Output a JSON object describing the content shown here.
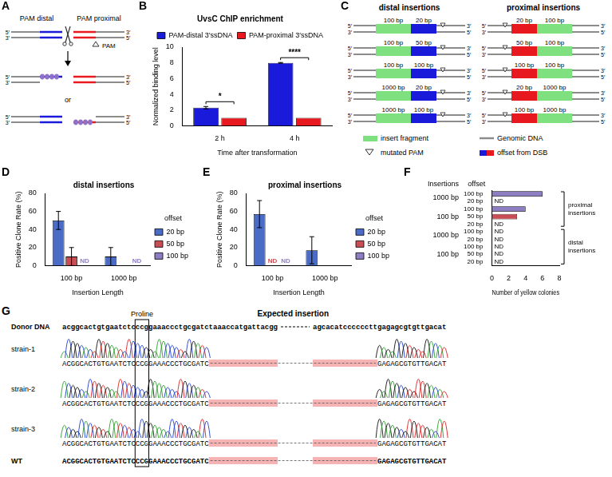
{
  "chart_data": [
    {
      "panel": "B",
      "type": "bar",
      "title": "UvsC ChIP enrichment",
      "x_label": "Time after transformation",
      "y_label": "Normalized binding level",
      "categories": [
        "2 h",
        "4 h"
      ],
      "series": [
        {
          "name": "PAM-distal 3′ssDNA",
          "color": "#1a1adb",
          "values": [
            2.3,
            8.0
          ],
          "errors": [
            0.15,
            0.05
          ]
        },
        {
          "name": "PAM-proximal 3′ssDNA",
          "color": "#e8191e",
          "values": [
            1,
            1
          ]
        }
      ],
      "significance": [
        "*",
        "****"
      ],
      "ylim": [
        0,
        10
      ],
      "yticks": [
        0,
        2,
        4,
        6,
        8,
        10
      ],
      "grid": false,
      "legend": "top"
    },
    {
      "panel": "D",
      "type": "bar",
      "title": "distal insertions",
      "x_label": "Insertion Length",
      "y_label": "Positive Clone Rate (%)",
      "legend_title": "offset",
      "categories": [
        "100 bp",
        "1000 bp"
      ],
      "series": [
        {
          "name": "20 bp",
          "color": "#4a6cc7",
          "values": [
            50,
            10
          ],
          "errors": [
            10,
            10
          ]
        },
        {
          "name": "50 bp",
          "color": "#c94d55",
          "values": [
            10,
            null
          ],
          "errors": [
            10,
            null
          ]
        },
        {
          "name": "100 bp",
          "color": "#8d7dc2",
          "values": [
            null,
            null
          ],
          "not_detected": [
            true,
            true
          ]
        }
      ],
      "not_detected_label": "ND",
      "ylim": [
        0,
        80
      ],
      "yticks": [
        0,
        20,
        40,
        60,
        80
      ],
      "grid": false,
      "legend": "right"
    },
    {
      "panel": "E",
      "type": "bar",
      "title": "proximal insertions",
      "x_label": "Insertion Length",
      "y_label": "Positive Clone Rate (%)",
      "legend_title": "offset",
      "categories": [
        "100 bp",
        "1000 bp"
      ],
      "series": [
        {
          "name": "20 bp",
          "color": "#4a6cc7",
          "values": [
            57,
            17
          ],
          "errors": [
            15,
            15
          ]
        },
        {
          "name": "50 bp",
          "color": "#c94d55",
          "values": [
            null,
            null
          ],
          "not_detected": [
            true,
            false
          ]
        },
        {
          "name": "100 bp",
          "color": "#8d7dc2",
          "values": [
            null,
            null
          ],
          "not_detected": [
            true,
            false
          ]
        }
      ],
      "not_detected_label": "ND",
      "ylim": [
        0,
        80
      ],
      "yticks": [
        0,
        20,
        40,
        60,
        80
      ],
      "grid": false,
      "legend": "right"
    },
    {
      "panel": "F",
      "type": "bar",
      "orientation": "horizontal",
      "x_label": "Number of yellow colonies",
      "insertions_header": "Insertions",
      "offset_header": "offset",
      "categories": [
        "100 bp",
        "20 bp",
        "100 bp",
        "50 bp",
        "20 bp",
        "100 bp",
        "20 bp",
        "100 bp",
        "50 bp",
        "20 bp"
      ],
      "insertions": [
        "1000 bp",
        "1000 bp",
        "100 bp",
        "100 bp",
        "100 bp",
        "1000 bp",
        "1000 bp",
        "100 bp",
        "100 bp",
        "100 bp"
      ],
      "sections": [
        "proximal insertions",
        "proximal insertions",
        "proximal insertions",
        "proximal insertions",
        "proximal insertions",
        "distal insertions",
        "distal insertions",
        "distal insertions",
        "distal insertions",
        "distal insertions"
      ],
      "values": [
        6,
        null,
        4,
        3,
        null,
        null,
        null,
        null,
        null,
        null
      ],
      "not_detected": [
        false,
        true,
        false,
        false,
        true,
        true,
        true,
        true,
        true,
        true
      ],
      "not_detected_label": "ND",
      "colors": [
        "#8d7dc2",
        "#4a6cc7",
        "#8d7dc2",
        "#c94d55",
        "#4a6cc7",
        "#8d7dc2",
        "#4a6cc7",
        "#8d7dc2",
        "#c94d55",
        "#4a6cc7"
      ],
      "xlim": [
        0,
        8
      ],
      "xticks": [
        0,
        2,
        4,
        6,
        8
      ],
      "grid": false
    }
  ],
  "diagrams": {
    "A": {
      "panel": "A",
      "distal_label": "PAM distal",
      "proximal_label": "PAM proximal",
      "pam_label": "PAM",
      "or_label": "or",
      "five_prime": "5′",
      "three_prime": "3′"
    },
    "C": {
      "panel": "C",
      "distal": {
        "title": "distal insertions",
        "rows": [
          {
            "insert": "100 bp",
            "offset": "20 bp"
          },
          {
            "insert": "100 bp",
            "offset": "50 bp"
          },
          {
            "insert": "100 bp",
            "offset": "100 bp"
          },
          {
            "insert": "1000 bp",
            "offset": "20 bp"
          },
          {
            "insert": "1000 bp",
            "offset": "100 bp"
          }
        ]
      },
      "proximal": {
        "title": "proximal insertions",
        "rows": [
          {
            "offset": "20 bp",
            "insert": "100 bp"
          },
          {
            "offset": "50 bp",
            "insert": "100 bp"
          },
          {
            "offset": "100 bp",
            "insert": "100 bp"
          },
          {
            "offset": "20 bp",
            "insert": "1000 bp"
          },
          {
            "offset": "100 bp",
            "insert": "1000 bp"
          }
        ]
      },
      "five_prime": "5′",
      "three_prime": "3′",
      "legend": {
        "insert": "insert fragment",
        "genomic": "Genomic DNA",
        "pam": "mutated PAM",
        "offset": "offset from DSB"
      }
    },
    "G": {
      "panel": "G",
      "donor_label": "Donor DNA",
      "donor_left": "acggcactgtgaatctcccggaaaccctgcgatctaaaccatgattacgg",
      "donor_right": "agcacatccccccttgagagcgtgttgacat",
      "highlight_label": "Proline",
      "highlight_start": 17,
      "highlight_length": 3,
      "insertion_label": "Expected insertion",
      "strains": [
        "strain-1",
        "strain-2",
        "strain-3"
      ],
      "strain_left": "ACGGCACTGTGAATCTCCCGGAAACCCTGCGATC",
      "strain_right": "GAGAGCGTGTTGACAT",
      "wt_label": "WT"
    }
  }
}
